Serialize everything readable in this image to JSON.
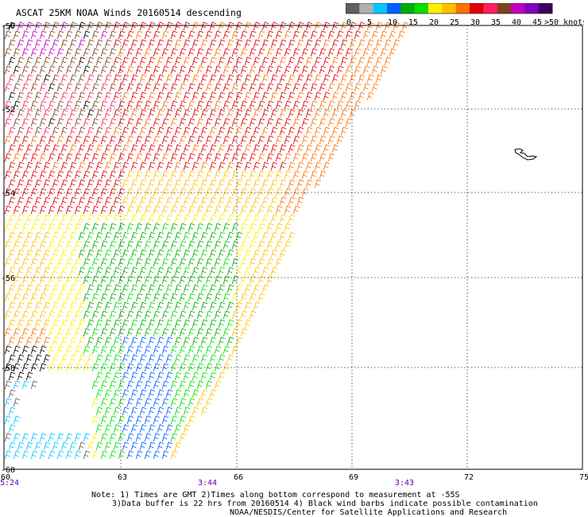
{
  "title": "ASCAT 25KM NOAA Winds 20160514 descending",
  "legend": {
    "colors": [
      "#606060",
      "#b0b0b0",
      "#00c8ff",
      "#0060ff",
      "#00b000",
      "#00e000",
      "#ffee00",
      "#ffc000",
      "#ff7000",
      "#e00000",
      "#ff2060",
      "#804020",
      "#c000c0",
      "#8000c0",
      "#400060"
    ],
    "labels": [
      "0",
      "5",
      "10",
      "15",
      "20",
      "25",
      "30",
      "35",
      "40",
      "45",
      ">50 knots"
    ]
  },
  "map": {
    "lat_labels": [
      "-50",
      "-52",
      "-54",
      "-56",
      "-58",
      "-60"
    ],
    "lon_labels": [
      "60",
      "63",
      "66",
      "69",
      "72",
      "75"
    ],
    "time_labels": [
      "5:24",
      "3:44",
      "3:43"
    ]
  },
  "notes": {
    "line1": "Note: 1) Times are GMT 2)Times along bottom correspond to measurement at -55S",
    "line2": "3)Data buffer is 22 hrs from 20160514 4) Black wind barbs indicate possible contamination",
    "line3": "NOAA/NESDIS/Center for Satellite Applications and Research"
  }
}
